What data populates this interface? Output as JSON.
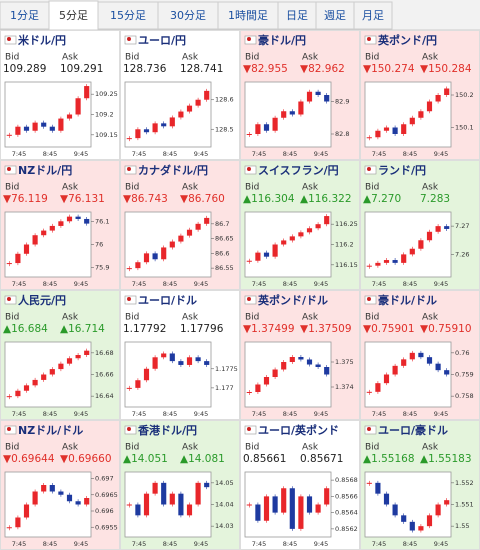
{
  "tabs": [
    "1分足",
    "5分足",
    "15分足",
    "30分足",
    "1時間足",
    "日足",
    "週足",
    "月足"
  ],
  "active_tab": 1,
  "panels": [
    {
      "name": "米ドル/円",
      "tone": "none",
      "bid_label": "Bid",
      "ask_label": "Ask",
      "bid": "109.289",
      "ask": "109.291",
      "chart": {
        "ylim": [
          109.12,
          109.28
        ],
        "yticks": [
          109.25,
          109.2,
          109.15
        ],
        "xticks": [
          "7:45",
          "8:45",
          "9:45"
        ],
        "values": [
          109.15,
          109.17,
          109.16,
          109.18,
          109.17,
          109.16,
          109.19,
          109.2,
          109.24,
          109.27
        ]
      }
    },
    {
      "name": "ユーロ/円",
      "tone": "none",
      "bid_label": "Bid",
      "ask_label": "Ask",
      "bid": "128.736",
      "ask": "128.741",
      "chart": {
        "ylim": [
          128.44,
          128.66
        ],
        "yticks": [
          128.6,
          128.5
        ],
        "xticks": [
          "7:45",
          "8:45",
          "9:45"
        ],
        "values": [
          128.47,
          128.5,
          128.49,
          128.52,
          128.51,
          128.54,
          128.56,
          128.58,
          128.6,
          128.63
        ]
      }
    },
    {
      "name": "豪ドル/円",
      "tone": "down",
      "bid_label": "Bid",
      "ask_label": "Ask",
      "bid": "▼82.955",
      "ask": "▼82.962",
      "chart": {
        "ylim": [
          82.76,
          82.96
        ],
        "yticks": [
          82.9,
          82.8
        ],
        "xticks": [
          "7:45",
          "8:45",
          "9:45"
        ],
        "values": [
          82.8,
          82.83,
          82.81,
          82.85,
          82.87,
          82.86,
          82.9,
          82.93,
          82.92,
          82.9
        ]
      }
    },
    {
      "name": "英ポンド/円",
      "tone": "down",
      "bid_label": "Bid",
      "ask_label": "Ask",
      "bid": "▼150.274",
      "ask": "▼150.284",
      "chart": {
        "ylim": [
          150.04,
          150.24
        ],
        "yticks": [
          150.2,
          150.1
        ],
        "xticks": [
          "7:45",
          "8:45",
          "9:45"
        ],
        "values": [
          150.07,
          150.09,
          150.1,
          150.08,
          150.11,
          150.13,
          150.15,
          150.18,
          150.2,
          150.22
        ]
      }
    },
    {
      "name": "NZドル/円",
      "tone": "down",
      "bid_label": "Bid",
      "ask_label": "Ask",
      "bid": "▼76.119",
      "ask": "▼76.131",
      "chart": {
        "ylim": [
          75.86,
          76.14
        ],
        "yticks": [
          76.1,
          76,
          75.9
        ],
        "xticks": [
          "7:45",
          "8:45",
          "9:45"
        ],
        "values": [
          75.92,
          75.96,
          76.0,
          76.04,
          76.06,
          76.08,
          76.1,
          76.12,
          76.11,
          76.09
        ]
      }
    },
    {
      "name": "カナダドル/円",
      "tone": "down",
      "bid_label": "Bid",
      "ask_label": "Ask",
      "bid": "▼86.743",
      "ask": "▼86.760",
      "chart": {
        "ylim": [
          86.52,
          86.74
        ],
        "yticks": [
          86.7,
          86.65,
          86.6,
          86.55
        ],
        "xticks": [
          "7:45",
          "8:45",
          "9:45"
        ],
        "values": [
          86.55,
          86.57,
          86.6,
          86.58,
          86.62,
          86.64,
          86.66,
          86.68,
          86.7,
          86.72
        ]
      }
    },
    {
      "name": "スイスフラン/円",
      "tone": "up",
      "bid_label": "Bid",
      "ask_label": "Ask",
      "bid": "▲116.304",
      "ask": "▲116.322",
      "chart": {
        "ylim": [
          116.12,
          116.28
        ],
        "yticks": [
          116.25,
          116.2,
          116.15
        ],
        "xticks": [
          "7:45",
          "8:45",
          "9:45"
        ],
        "values": [
          116.16,
          116.18,
          116.17,
          116.2,
          116.21,
          116.22,
          116.23,
          116.24,
          116.25,
          116.27
        ]
      }
    },
    {
      "name": "ランド/円",
      "tone": "up",
      "bid_label": "Bid",
      "ask_label": "Ask",
      "bid": "▲7.270",
      "ask": "7.283",
      "chart": {
        "ylim": [
          7.252,
          7.275
        ],
        "yticks": [
          7.27,
          7.26
        ],
        "xticks": [
          "7:45",
          "8:45",
          "9:45"
        ],
        "values": [
          7.256,
          7.257,
          7.258,
          7.257,
          7.26,
          7.262,
          7.265,
          7.268,
          7.27,
          7.269
        ]
      }
    },
    {
      "name": "人民元/円",
      "tone": "up",
      "bid_label": "Bid",
      "ask_label": "Ask",
      "bid": "▲16.684",
      "ask": "▲16.714",
      "chart": {
        "ylim": [
          16.63,
          16.69
        ],
        "yticks": [
          16.68,
          16.66,
          16.64
        ],
        "xticks": [
          "7:45",
          "8:45",
          "9:45"
        ],
        "values": [
          16.64,
          16.645,
          16.65,
          16.655,
          16.66,
          16.665,
          16.67,
          16.675,
          16.678,
          16.682
        ]
      }
    },
    {
      "name": "ユーロ/ドル",
      "tone": "none",
      "bid_label": "Bid",
      "ask_label": "Ask",
      "bid": "1.17792",
      "ask": "1.17796",
      "chart": {
        "ylim": [
          1.1765,
          1.1782
        ],
        "yticks": [
          1.1775,
          1.177
        ],
        "xticks": [
          "7:45",
          "8:45",
          "9:45"
        ],
        "values": [
          1.177,
          1.1772,
          1.1775,
          1.1778,
          1.1779,
          1.1777,
          1.1776,
          1.1778,
          1.1777,
          1.1776
        ]
      }
    },
    {
      "name": "英ポンド/ドル",
      "tone": "down",
      "bid_label": "Bid",
      "ask_label": "Ask",
      "bid": "▼1.37499",
      "ask": "▼1.37509",
      "chart": {
        "ylim": [
          1.3732,
          1.3758
        ],
        "yticks": [
          1.375,
          1.374
        ],
        "xticks": [
          "7:45",
          "8:45",
          "9:45"
        ],
        "values": [
          1.3738,
          1.3741,
          1.3744,
          1.3747,
          1.375,
          1.3752,
          1.3751,
          1.3749,
          1.3748,
          1.3745
        ]
      }
    },
    {
      "name": "豪ドル/ドル",
      "tone": "down",
      "bid_label": "Bid",
      "ask_label": "Ask",
      "bid": "▼0.75901",
      "ask": "▼0.75910",
      "chart": {
        "ylim": [
          0.7575,
          0.7605
        ],
        "yticks": [
          0.76,
          0.759,
          0.758
        ],
        "xticks": [
          "7:45",
          "8:45",
          "9:45"
        ],
        "values": [
          0.7582,
          0.7586,
          0.759,
          0.7594,
          0.7597,
          0.76,
          0.7598,
          0.7595,
          0.7592,
          0.759
        ]
      }
    },
    {
      "name": "NZドル/ドル",
      "tone": "down",
      "bid_label": "Bid",
      "ask_label": "Ask",
      "bid": "▼0.69644",
      "ask": "▼0.69660",
      "chart": {
        "ylim": [
          0.6952,
          0.6972
        ],
        "yticks": [
          0.697,
          0.6965,
          0.696,
          0.6955
        ],
        "xticks": [
          "7:45",
          "8:45",
          "9:45"
        ],
        "values": [
          0.6955,
          0.6958,
          0.6962,
          0.6966,
          0.6968,
          0.6966,
          0.6965,
          0.6963,
          0.6962,
          0.6964
        ]
      }
    },
    {
      "name": "香港ドル/円",
      "tone": "up",
      "bid_label": "Bid",
      "ask_label": "Ask",
      "bid": "▲14.051",
      "ask": "▲14.081",
      "chart": {
        "ylim": [
          14.025,
          14.055
        ],
        "yticks": [
          14.05,
          14.04,
          14.03
        ],
        "xticks": [
          "7:45",
          "8:45",
          "9:45"
        ],
        "values": [
          14.04,
          14.035,
          14.045,
          14.05,
          14.04,
          14.045,
          14.035,
          14.04,
          14.05,
          14.048
        ]
      }
    },
    {
      "name": "ユーロ/英ポンド",
      "tone": "none",
      "bid_label": "Bid",
      "ask_label": "Ask",
      "bid": "0.85661",
      "ask": "0.85671",
      "chart": {
        "ylim": [
          0.8561,
          0.8569
        ],
        "yticks": [
          0.8568,
          0.8566,
          0.8564,
          0.8562
        ],
        "xticks": [
          "7:45",
          "8:45",
          "9:45"
        ],
        "values": [
          0.8565,
          0.8563,
          0.8566,
          0.8564,
          0.8567,
          0.8562,
          0.8566,
          0.8564,
          0.8565,
          0.8567
        ]
      }
    },
    {
      "name": "ユーロ/豪ドル",
      "tone": "up",
      "bid_label": "Bid",
      "ask_label": "Ask",
      "bid": "▲1.55168",
      "ask": "▲1.55183",
      "chart": {
        "ylim": [
          1.5495,
          1.5525
        ],
        "yticks": [
          1.552,
          1.551,
          1.55
        ],
        "xticks": [
          "7:45",
          "8:45",
          "9:45"
        ],
        "values": [
          1.552,
          1.5515,
          1.551,
          1.5505,
          1.5502,
          1.5498,
          1.55,
          1.5505,
          1.551,
          1.5512
        ]
      }
    }
  ]
}
